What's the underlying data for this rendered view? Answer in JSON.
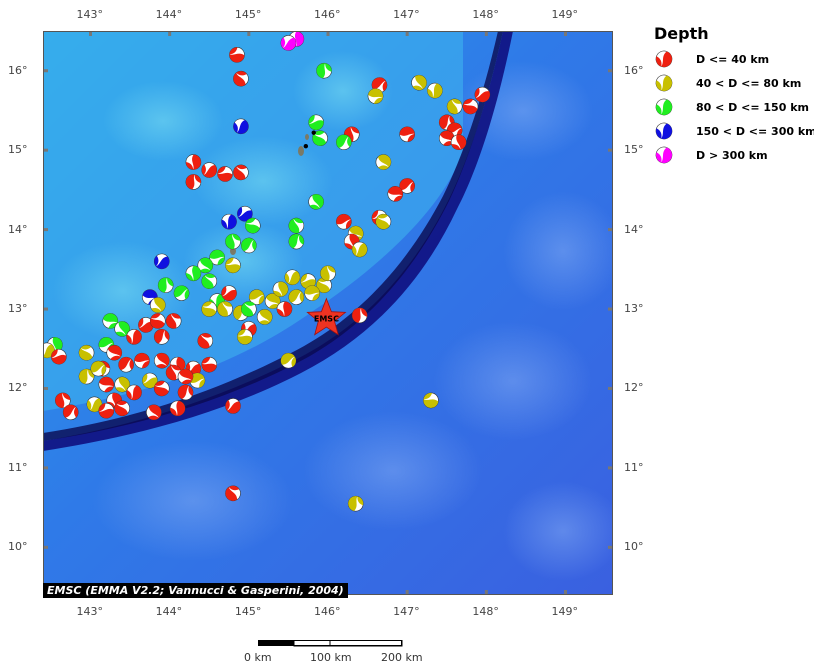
{
  "legend": {
    "title": "Depth",
    "items": [
      {
        "label": "D <= 40 km",
        "color": "#ee2010"
      },
      {
        "label": "40 < D <= 80 km",
        "color": "#c8c000"
      },
      {
        "label": "80 < D <= 150 km",
        "color": "#20ee20"
      },
      {
        "label": "150 < D <= 300 km",
        "color": "#1010e0"
      },
      {
        "label": "D > 300 km",
        "color": "#ff00ff"
      }
    ]
  },
  "axes": {
    "lon_labels": [
      "143°",
      "144°",
      "145°",
      "146°",
      "147°",
      "148°",
      "149°"
    ],
    "lat_labels": [
      "16°",
      "15°",
      "14°",
      "13°",
      "12°",
      "11°",
      "10°"
    ],
    "lon_range": [
      142.4,
      149.6
    ],
    "lat_range": [
      9.4,
      16.5
    ]
  },
  "epicenter": {
    "label": "EMSC",
    "lon": 145.98,
    "lat": 12.88,
    "color": "#ee3322"
  },
  "credit": "EMSC (EMMA V2.2; Vannucci & Gasperini, 2004)",
  "scale_bar": {
    "labels": [
      "0 km",
      "100 km",
      "200 km"
    ]
  },
  "events": [
    {
      "lon": 145.6,
      "lat": 16.4,
      "d": "m"
    },
    {
      "lon": 145.5,
      "lat": 16.35,
      "d": "m"
    },
    {
      "lon": 144.85,
      "lat": 16.2,
      "d": "r"
    },
    {
      "lon": 144.9,
      "lat": 15.9,
      "d": "r"
    },
    {
      "lon": 145.95,
      "lat": 16.0,
      "d": "g"
    },
    {
      "lon": 146.65,
      "lat": 15.82,
      "d": "r"
    },
    {
      "lon": 146.6,
      "lat": 15.68,
      "d": "y"
    },
    {
      "lon": 147.15,
      "lat": 15.85,
      "d": "y"
    },
    {
      "lon": 147.35,
      "lat": 15.75,
      "d": "y"
    },
    {
      "lon": 147.95,
      "lat": 15.7,
      "d": "r"
    },
    {
      "lon": 147.8,
      "lat": 15.55,
      "d": "r"
    },
    {
      "lon": 147.6,
      "lat": 15.55,
      "d": "y"
    },
    {
      "lon": 147.5,
      "lat": 15.35,
      "d": "r"
    },
    {
      "lon": 147.6,
      "lat": 15.25,
      "d": "r"
    },
    {
      "lon": 147.5,
      "lat": 15.15,
      "d": "r"
    },
    {
      "lon": 147.65,
      "lat": 15.1,
      "d": "r"
    },
    {
      "lon": 144.9,
      "lat": 15.3,
      "d": "b"
    },
    {
      "lon": 145.85,
      "lat": 15.35,
      "d": "g"
    },
    {
      "lon": 145.9,
      "lat": 15.15,
      "d": "g"
    },
    {
      "lon": 146.3,
      "lat": 15.2,
      "d": "r"
    },
    {
      "lon": 146.2,
      "lat": 15.1,
      "d": "g"
    },
    {
      "lon": 147.0,
      "lat": 15.2,
      "d": "r"
    },
    {
      "lon": 146.7,
      "lat": 14.85,
      "d": "y"
    },
    {
      "lon": 144.3,
      "lat": 14.85,
      "d": "r"
    },
    {
      "lon": 144.5,
      "lat": 14.75,
      "d": "r"
    },
    {
      "lon": 144.7,
      "lat": 14.7,
      "d": "r"
    },
    {
      "lon": 144.9,
      "lat": 14.72,
      "d": "r"
    },
    {
      "lon": 144.3,
      "lat": 14.6,
      "d": "r"
    },
    {
      "lon": 147.0,
      "lat": 14.55,
      "d": "r"
    },
    {
      "lon": 146.85,
      "lat": 14.45,
      "d": "r"
    },
    {
      "lon": 145.85,
      "lat": 14.35,
      "d": "g"
    },
    {
      "lon": 144.75,
      "lat": 14.1,
      "d": "b"
    },
    {
      "lon": 144.95,
      "lat": 14.2,
      "d": "b"
    },
    {
      "lon": 145.05,
      "lat": 14.05,
      "d": "g"
    },
    {
      "lon": 145.6,
      "lat": 14.05,
      "d": "g"
    },
    {
      "lon": 145.6,
      "lat": 13.85,
      "d": "g"
    },
    {
      "lon": 146.2,
      "lat": 14.1,
      "d": "r"
    },
    {
      "lon": 146.35,
      "lat": 13.95,
      "d": "y"
    },
    {
      "lon": 146.3,
      "lat": 13.85,
      "d": "r"
    },
    {
      "lon": 146.4,
      "lat": 13.75,
      "d": "y"
    },
    {
      "lon": 146.65,
      "lat": 14.15,
      "d": "r"
    },
    {
      "lon": 146.7,
      "lat": 14.1,
      "d": "y"
    },
    {
      "lon": 144.8,
      "lat": 13.85,
      "d": "g"
    },
    {
      "lon": 145.0,
      "lat": 13.8,
      "d": "g"
    },
    {
      "lon": 144.6,
      "lat": 13.65,
      "d": "g"
    },
    {
      "lon": 144.45,
      "lat": 13.55,
      "d": "g"
    },
    {
      "lon": 144.3,
      "lat": 13.45,
      "d": "g"
    },
    {
      "lon": 143.9,
      "lat": 13.6,
      "d": "b"
    },
    {
      "lon": 144.8,
      "lat": 13.55,
      "d": "y"
    },
    {
      "lon": 144.5,
      "lat": 13.35,
      "d": "g"
    },
    {
      "lon": 143.95,
      "lat": 13.3,
      "d": "g"
    },
    {
      "lon": 144.15,
      "lat": 13.2,
      "d": "g"
    },
    {
      "lon": 143.75,
      "lat": 13.15,
      "d": "b"
    },
    {
      "lon": 143.85,
      "lat": 13.05,
      "d": "y"
    },
    {
      "lon": 144.6,
      "lat": 13.1,
      "d": "g"
    },
    {
      "lon": 144.75,
      "lat": 13.2,
      "d": "r"
    },
    {
      "lon": 144.5,
      "lat": 13.0,
      "d": "y"
    },
    {
      "lon": 144.7,
      "lat": 13.0,
      "d": "y"
    },
    {
      "lon": 144.9,
      "lat": 12.95,
      "d": "y"
    },
    {
      "lon": 145.1,
      "lat": 13.15,
      "d": "y"
    },
    {
      "lon": 145.3,
      "lat": 13.1,
      "d": "y"
    },
    {
      "lon": 145.4,
      "lat": 13.25,
      "d": "y"
    },
    {
      "lon": 145.55,
      "lat": 13.4,
      "d": "y"
    },
    {
      "lon": 145.75,
      "lat": 13.35,
      "d": "y"
    },
    {
      "lon": 145.95,
      "lat": 13.3,
      "d": "y"
    },
    {
      "lon": 146.0,
      "lat": 13.45,
      "d": "y"
    },
    {
      "lon": 145.6,
      "lat": 13.15,
      "d": "y"
    },
    {
      "lon": 145.8,
      "lat": 13.2,
      "d": "y"
    },
    {
      "lon": 145.2,
      "lat": 12.9,
      "d": "y"
    },
    {
      "lon": 145.45,
      "lat": 13.0,
      "d": "r"
    },
    {
      "lon": 145.0,
      "lat": 12.75,
      "d": "r"
    },
    {
      "lon": 144.95,
      "lat": 12.65,
      "d": "y"
    },
    {
      "lon": 145.0,
      "lat": 13.0,
      "d": "g"
    },
    {
      "lon": 146.4,
      "lat": 12.92,
      "d": "r"
    },
    {
      "lon": 145.5,
      "lat": 12.35,
      "d": "y"
    },
    {
      "lon": 143.25,
      "lat": 12.85,
      "d": "g"
    },
    {
      "lon": 143.4,
      "lat": 12.75,
      "d": "g"
    },
    {
      "lon": 143.55,
      "lat": 12.65,
      "d": "r"
    },
    {
      "lon": 143.7,
      "lat": 12.8,
      "d": "r"
    },
    {
      "lon": 143.85,
      "lat": 12.85,
      "d": "r"
    },
    {
      "lon": 144.05,
      "lat": 12.85,
      "d": "r"
    },
    {
      "lon": 143.9,
      "lat": 12.65,
      "d": "r"
    },
    {
      "lon": 143.2,
      "lat": 12.55,
      "d": "g"
    },
    {
      "lon": 143.3,
      "lat": 12.45,
      "d": "r"
    },
    {
      "lon": 142.55,
      "lat": 12.55,
      "d": "g"
    },
    {
      "lon": 142.45,
      "lat": 12.48,
      "d": "y"
    },
    {
      "lon": 142.6,
      "lat": 12.4,
      "d": "r"
    },
    {
      "lon": 142.95,
      "lat": 12.45,
      "d": "y"
    },
    {
      "lon": 143.15,
      "lat": 12.25,
      "d": "r"
    },
    {
      "lon": 143.45,
      "lat": 12.3,
      "d": "r"
    },
    {
      "lon": 143.65,
      "lat": 12.35,
      "d": "r"
    },
    {
      "lon": 143.9,
      "lat": 12.35,
      "d": "r"
    },
    {
      "lon": 144.1,
      "lat": 12.3,
      "d": "r"
    },
    {
      "lon": 144.3,
      "lat": 12.25,
      "d": "r"
    },
    {
      "lon": 144.5,
      "lat": 12.3,
      "d": "r"
    },
    {
      "lon": 144.45,
      "lat": 12.6,
      "d": "r"
    },
    {
      "lon": 142.95,
      "lat": 12.15,
      "d": "y"
    },
    {
      "lon": 143.1,
      "lat": 12.25,
      "d": "y"
    },
    {
      "lon": 143.2,
      "lat": 12.05,
      "d": "r"
    },
    {
      "lon": 143.4,
      "lat": 12.05,
      "d": "y"
    },
    {
      "lon": 143.55,
      "lat": 11.95,
      "d": "r"
    },
    {
      "lon": 143.75,
      "lat": 12.1,
      "d": "y"
    },
    {
      "lon": 143.9,
      "lat": 12.0,
      "d": "r"
    },
    {
      "lon": 144.05,
      "lat": 12.2,
      "d": "r"
    },
    {
      "lon": 144.2,
      "lat": 11.95,
      "d": "r"
    },
    {
      "lon": 144.35,
      "lat": 12.1,
      "d": "y"
    },
    {
      "lon": 144.2,
      "lat": 12.15,
      "d": "r"
    },
    {
      "lon": 143.3,
      "lat": 11.85,
      "d": "r"
    },
    {
      "lon": 143.05,
      "lat": 11.8,
      "d": "y"
    },
    {
      "lon": 143.2,
      "lat": 11.72,
      "d": "r"
    },
    {
      "lon": 143.4,
      "lat": 11.75,
      "d": "r"
    },
    {
      "lon": 142.65,
      "lat": 11.85,
      "d": "r"
    },
    {
      "lon": 142.75,
      "lat": 11.7,
      "d": "r"
    },
    {
      "lon": 142.2,
      "lat": 11.8,
      "d": "r"
    },
    {
      "lon": 143.8,
      "lat": 11.7,
      "d": "r"
    },
    {
      "lon": 144.1,
      "lat": 11.75,
      "d": "r"
    },
    {
      "lon": 144.8,
      "lat": 11.78,
      "d": "r"
    },
    {
      "lon": 147.3,
      "lat": 11.85,
      "d": "y"
    },
    {
      "lon": 144.8,
      "lat": 10.68,
      "d": "r"
    },
    {
      "lon": 146.35,
      "lat": 10.55,
      "d": "y"
    }
  ],
  "small_markers": [
    {
      "lon": 145.82,
      "lat": 15.22
    },
    {
      "lon": 145.72,
      "lat": 15.05
    }
  ]
}
